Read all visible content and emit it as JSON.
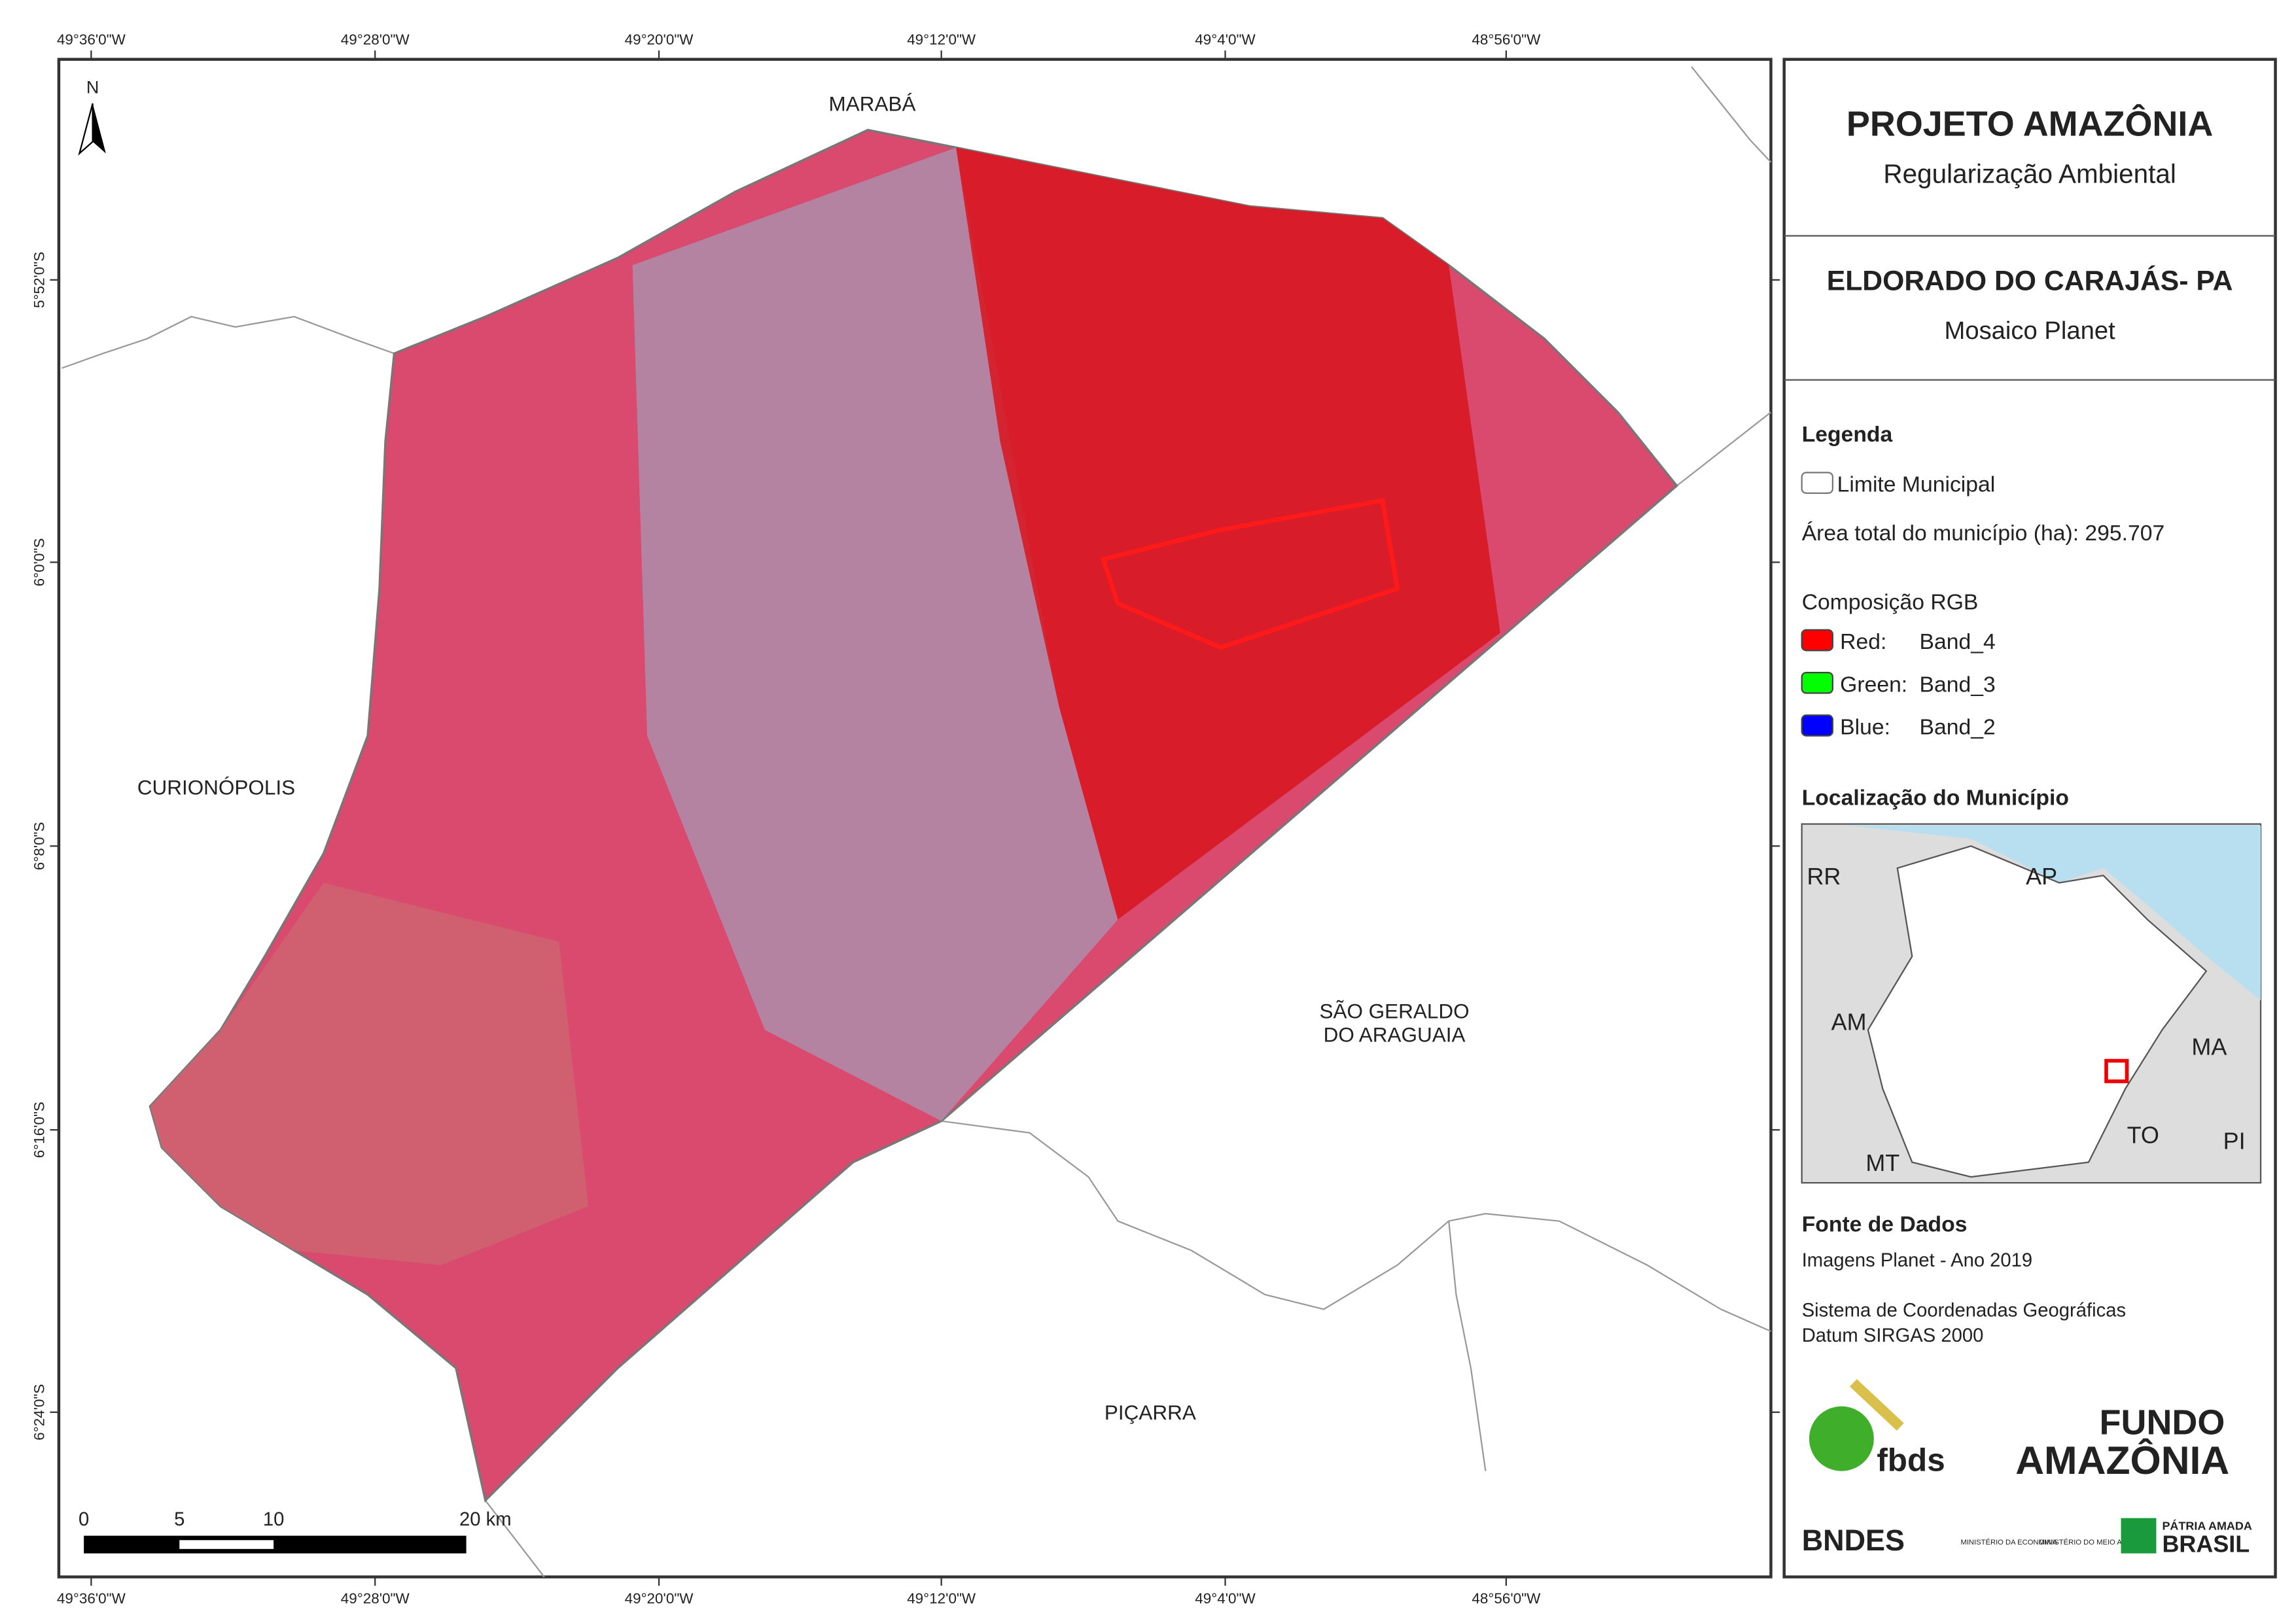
{
  "map": {
    "north_arrow": "N",
    "coordinates": {
      "longitude": [
        "49°36'0\"W",
        "49°28'0\"W",
        "49°20'0\"W",
        "49°12'0\"W",
        "49°4'0\"W",
        "48°56'0\"W"
      ],
      "latitude": [
        "5°52'0\"S",
        "6°0'0\"S",
        "6°8'0\"S",
        "6°16'0\"S",
        "6°24'0\"S"
      ]
    },
    "places": [
      "MARABÁ",
      "CURIONÓPOLIS",
      "SÃO GERALDO",
      "DO ARAGUAIA",
      "PIÇARRA"
    ],
    "scale_bar": [
      "0",
      "5",
      "10",
      "20 km"
    ]
  },
  "panel": {
    "title": "PROJETO AMAZÔNIA",
    "subtitle": "Regularização Ambiental",
    "municipality": "ELDORADO DO CARAJÁS- PA",
    "mosaic": "Mosaico Planet",
    "legend": {
      "title": "Legenda",
      "boundary": "Limite Municipal",
      "area": "Área total do município (ha): 295.707",
      "composition": "Composição RGB",
      "bands": [
        {
          "channel": "Red:",
          "band": "Band_4",
          "color": "#ff0000"
        },
        {
          "channel": "Green:",
          "band": "Band_3",
          "color": "#00ff00"
        },
        {
          "channel": "Blue:",
          "band": "Band_2",
          "color": "#0000ff"
        }
      ]
    },
    "location": {
      "title": "Localização do Município",
      "states": [
        "RR",
        "AP",
        "AM",
        "MA",
        "TO",
        "PI",
        "MT"
      ]
    },
    "sources": {
      "title": "Fonte de Dados",
      "imagery": "Imagens Planet - Ano 2019",
      "crs": "Sistema de Coordenadas Geográficas",
      "datum": "Datum SIRGAS 2000"
    },
    "logos": {
      "fbds": "fbds",
      "fundo": "FUNDO",
      "amazonia": "AMAZÔNIA",
      "bndes": "BNDES",
      "economia": "MINISTÉRIO DA ECONOMIA",
      "meio_ambiente": "MINISTÉRIO DO MEIO AMBIENTE",
      "patria": "PÁTRIA AMADA",
      "brasil": "BRASIL"
    }
  }
}
